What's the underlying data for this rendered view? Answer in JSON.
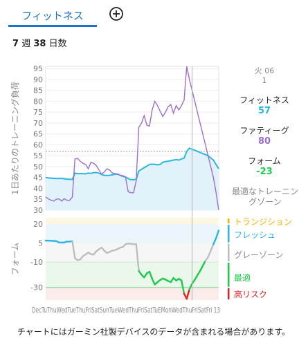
{
  "tabs": {
    "active_label": "フィットネス",
    "add_icon": "plus-circle-icon"
  },
  "summary": {
    "weeks": "7",
    "week_unit": "週",
    "days": "38",
    "day_unit": "日数"
  },
  "top_chart": {
    "ylabel": "1日あたりのトレーニング負荷",
    "yticks": [
      "95",
      "90",
      "85",
      "80",
      "75",
      "70",
      "65",
      "60",
      "55",
      "50",
      "45",
      "40",
      "35",
      "30"
    ],
    "ylim": [
      30,
      96
    ],
    "optimal_line": 57
  },
  "bottom_chart": {
    "ylabel": "フォーム",
    "yticks": [
      "20",
      "5",
      "-10",
      "-30"
    ]
  },
  "x_axis_text": "DecTuThuWedTueThuFriSatSunTueWedThuFriSatTuEMonWedThuFriSatFri 13",
  "selected": {
    "date_line1": "火 06",
    "date_line2": "1",
    "fitness_label": "フィットネス",
    "fitness_value": "57",
    "fatigue_label": "ファティーグ",
    "fatigue_value": "80",
    "form_label": "フォーム",
    "form_value": "-23",
    "optimal_label": "最適なトレーニングゾーン"
  },
  "zones": {
    "transition": "トランジション",
    "fresh": "フレッシュ",
    "grey": "グレーゾーン",
    "optimal": "最適",
    "high_risk": "高リスク"
  },
  "colors": {
    "accent": "#1a73c9",
    "fitness": "#29b6e0",
    "fatigue": "#9a6fd0",
    "form_positive": "#29b6e0",
    "form_grey": "#bdbdbd",
    "form_optimal": "#1ec94a",
    "form_high_risk": "#e02020",
    "transition": "#f2b400"
  },
  "chart_data": {
    "type": "line",
    "x_count": 66,
    "series": [
      {
        "name": "フィットネス",
        "values": [
          45,
          44.8,
          44.7,
          44.6,
          44.5,
          44.5,
          44.6,
          44.4,
          44.2,
          44.2,
          44.1,
          47,
          46.8,
          46.8,
          46.8,
          46.7,
          47,
          46.9,
          47.2,
          47.3,
          47,
          46.4,
          46,
          45.9,
          46,
          46.2,
          46.5,
          46.6,
          46,
          45.5,
          45.3,
          44.5,
          44,
          44,
          44.2,
          48,
          48.8,
          49.5,
          50.2,
          51,
          51.1,
          51,
          50.8,
          51,
          52,
          52.3,
          52.5,
          52.7,
          53,
          53.2,
          53,
          53.5,
          53.9,
          57,
          58.5,
          57.9,
          57.5,
          57,
          56.5,
          56,
          55.5,
          55,
          54,
          53,
          51,
          49
        ]
      },
      {
        "name": "ファティーグ",
        "values": [
          36,
          35.2,
          34.6,
          34.2,
          35,
          35.2,
          34.2,
          35.3,
          34.5,
          34.5,
          36,
          53.5,
          53.8,
          52.4,
          51.5,
          51,
          49,
          52,
          51.5,
          50.5,
          48.5,
          46.5,
          47.5,
          49,
          48.4,
          47.1,
          46.8,
          46.5,
          46,
          45.9,
          45.1,
          38.5,
          38,
          38,
          43.5,
          68,
          70,
          73.4,
          69,
          68.6,
          76,
          80,
          78,
          75.4,
          73,
          75,
          77.5,
          78.5,
          74.5,
          78,
          76,
          78,
          80.5,
          96,
          90,
          85,
          80,
          75,
          70,
          65,
          60,
          55,
          50,
          45,
          38,
          30
        ]
      },
      {
        "name": "フォーム",
        "values": [
          7,
          6.9,
          6.8,
          6.7,
          6.6,
          5.5,
          5.4,
          5.5,
          6.2,
          6.2,
          6.6,
          -7,
          -8.5,
          -7.9,
          -5.3,
          -4,
          -2.5,
          -3.8,
          -4,
          -1.5,
          0.1,
          1.5,
          -1,
          -2.8,
          -2,
          -0.9,
          -0.6,
          0.3,
          1.4,
          1.9,
          4.1,
          4.6,
          4.5,
          4.1,
          4.2,
          -17,
          -20,
          -22.2,
          -18.8,
          -17.6,
          -23.2,
          -27.7,
          -25.9,
          -24.1,
          -23,
          -23.7,
          -25,
          -25.8,
          -22.5,
          -24.6,
          -23.1,
          -24.5,
          -35,
          -39,
          -31.5,
          -27.1,
          -24,
          -20.5,
          -17,
          -13,
          -9,
          -6,
          -1,
          4,
          9,
          15
        ]
      }
    ],
    "zones_form": [
      {
        "name": "トランジション",
        "from": 20,
        "to": 25
      },
      {
        "name": "フレッシュ",
        "from": 5,
        "to": 20
      },
      {
        "name": "グレーゾーン",
        "from": -10,
        "to": 5
      },
      {
        "name": "最適",
        "from": -30,
        "to": -10
      },
      {
        "name": "高リスク",
        "from": -40,
        "to": -30
      }
    ]
  }
}
